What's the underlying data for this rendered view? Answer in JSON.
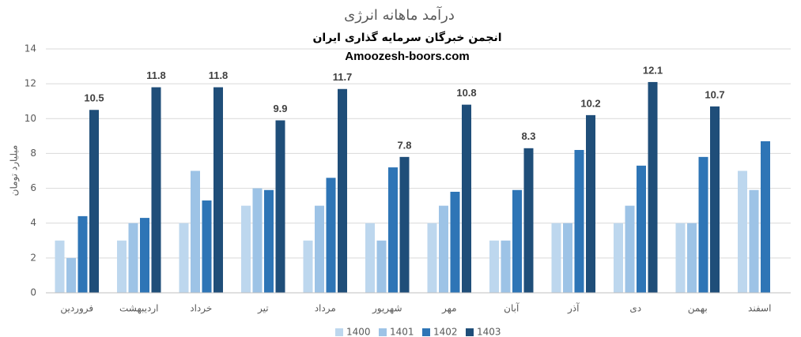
{
  "chart_data": {
    "type": "bar",
    "title": "درآمد ماهانه انرژی",
    "subtitle": "انجمن خبرگان سرمایه گذاری ایران",
    "annotation": "Amoozesh-boors.com",
    "y_label": "میلیارد تومان",
    "categories": [
      "فروردین",
      "اردیبهشت",
      "خرداد",
      "تیر",
      "مرداد",
      "شهریور",
      "مهر",
      "آبان",
      "آذر",
      "دی",
      "بهمن",
      "اسفند"
    ],
    "series": [
      {
        "name": "1400",
        "color": "#bdd7ee",
        "values": [
          3,
          3,
          4,
          5,
          3,
          4,
          4,
          3,
          4,
          4,
          4,
          7
        ]
      },
      {
        "name": "1401",
        "color": "#9dc3e6",
        "values": [
          2,
          4,
          7,
          6,
          5,
          3,
          5,
          3,
          4,
          5,
          4,
          5.9
        ]
      },
      {
        "name": "1402",
        "color": "#2e75b6",
        "values": [
          4.4,
          4.3,
          5.3,
          5.9,
          6.6,
          7.2,
          5.8,
          5.9,
          8.2,
          7.3,
          7.8,
          8.7
        ]
      },
      {
        "name": "1403",
        "color": "#1f4e79",
        "values": [
          10.5,
          11.8,
          11.8,
          9.9,
          11.7,
          7.8,
          10.8,
          8.3,
          10.2,
          12.1,
          10.7,
          null
        ],
        "data_labels": true
      }
    ],
    "ylim": [
      0,
      14
    ],
    "yticks": [
      0,
      2,
      4,
      6,
      8,
      10,
      12,
      14
    ],
    "grid": true,
    "legend": "bottom"
  }
}
